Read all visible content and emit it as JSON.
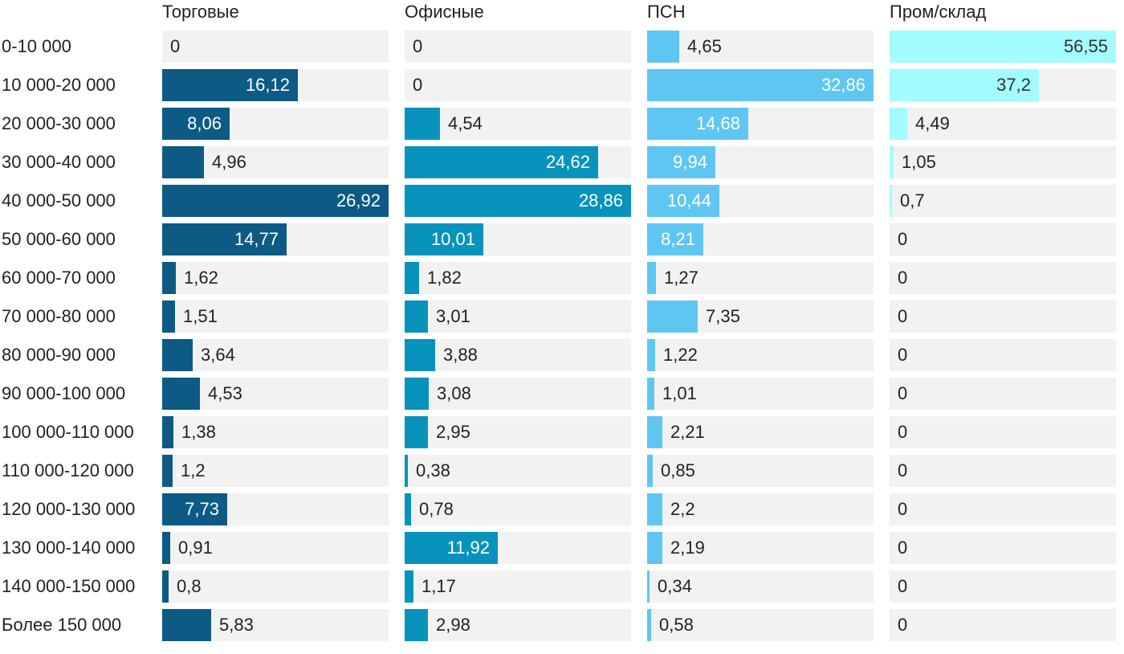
{
  "chart_data": {
    "type": "bar",
    "orientation": "horizontal",
    "layout": "small-multiples",
    "categories": [
      "0-10 000",
      "10 000-20 000",
      "20 000-30 000",
      "30 000-40 000",
      "40 000-50 000",
      "50 000-60 000",
      "60 000-70 000",
      "70 000-80 000",
      "80 000-90 000",
      "90 000-100 000",
      "100 000-110 000",
      "110 000-120 000",
      "120 000-130 000",
      "130 000-140 000",
      "140 000-150 000",
      "Более 150 000"
    ],
    "series": [
      {
        "name": "Торговые",
        "color": "#0d5a85",
        "xlim": [
          0,
          26.92
        ],
        "values": [
          0,
          16.12,
          8.06,
          4.96,
          26.92,
          14.77,
          1.62,
          1.51,
          3.64,
          4.53,
          1.38,
          1.2,
          7.73,
          0.91,
          0.8,
          5.83
        ],
        "labels": [
          "0",
          "16,12",
          "8,06",
          "4,96",
          "26,92",
          "14,77",
          "1,62",
          "1,51",
          "3,64",
          "4,53",
          "1,38",
          "1,2",
          "7,73",
          "0,91",
          "0,8",
          "5,83"
        ]
      },
      {
        "name": "Офисные",
        "color": "#0793bc",
        "xlim": [
          0,
          28.86
        ],
        "values": [
          0,
          0,
          4.54,
          24.62,
          28.86,
          10.01,
          1.82,
          3.01,
          3.88,
          3.08,
          2.95,
          0.38,
          0.78,
          11.92,
          1.17,
          2.98
        ],
        "labels": [
          "0",
          "0",
          "4,54",
          "24,62",
          "28,86",
          "10,01",
          "1,82",
          "3,01",
          "3,88",
          "3,08",
          "2,95",
          "0,38",
          "0,78",
          "11,92",
          "1,17",
          "2,98"
        ]
      },
      {
        "name": "ПСН",
        "color": "#5fc6f2",
        "xlim": [
          0,
          32.86
        ],
        "values": [
          4.65,
          32.86,
          14.68,
          9.94,
          10.44,
          8.21,
          1.27,
          7.35,
          1.22,
          1.01,
          2.21,
          0.85,
          2.2,
          2.19,
          0.34,
          0.58
        ],
        "labels": [
          "4,65",
          "32,86",
          "14,68",
          "9,94",
          "10,44",
          "8,21",
          "1,27",
          "7,35",
          "1,22",
          "1,01",
          "2,21",
          "0,85",
          "2,2",
          "2,19",
          "0,34",
          "0,58"
        ]
      },
      {
        "name": "Пром/склад",
        "color": "#a3fcff",
        "xlim": [
          0,
          56.55
        ],
        "values": [
          56.55,
          37.2,
          4.49,
          1.05,
          0.7,
          0,
          0,
          0,
          0,
          0,
          0,
          0,
          0,
          0,
          0,
          0
        ],
        "labels": [
          "56,55",
          "37,2",
          "4,49",
          "1,05",
          "0,7",
          "0",
          "0",
          "0",
          "0",
          "0",
          "0",
          "0",
          "0",
          "0",
          "0",
          "0"
        ]
      }
    ],
    "title": "",
    "xlabel": "",
    "ylabel": "",
    "grid": false,
    "legend": "none",
    "colors": {
      "track": "#f2f2f2",
      "label_inside_light": "#ffffff",
      "label_inside_dark": "#333333",
      "text": "#222222"
    }
  }
}
